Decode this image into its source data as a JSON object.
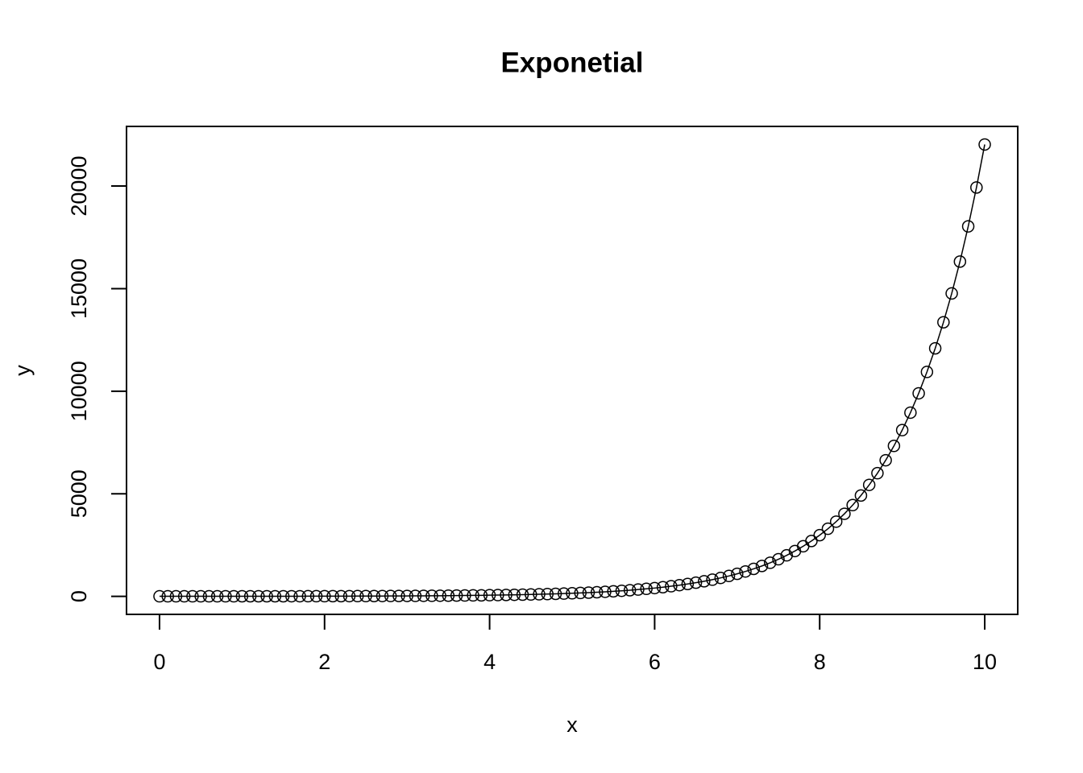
{
  "chart_data": {
    "type": "line",
    "title": "Exponetial",
    "x_label": "x",
    "y_label": "y",
    "x": [
      0,
      0.1,
      0.2,
      0.3,
      0.4,
      0.5,
      0.6,
      0.7,
      0.8,
      0.9,
      1,
      1.1,
      1.2,
      1.3,
      1.4,
      1.5,
      1.6,
      1.7,
      1.8,
      1.9,
      2,
      2.1,
      2.2,
      2.3,
      2.4,
      2.5,
      2.6,
      2.7,
      2.8,
      2.9,
      3,
      3.1,
      3.2,
      3.3,
      3.4,
      3.5,
      3.6,
      3.7,
      3.8,
      3.9,
      4,
      4.1,
      4.2,
      4.3,
      4.4,
      4.5,
      4.6,
      4.7,
      4.8,
      4.9,
      5,
      5.1,
      5.2,
      5.3,
      5.4,
      5.5,
      5.6,
      5.7,
      5.8,
      5.9,
      6,
      6.1,
      6.2,
      6.3,
      6.4,
      6.5,
      6.6,
      6.7,
      6.8,
      6.9,
      7,
      7.1,
      7.2,
      7.3,
      7.4,
      7.5,
      7.6,
      7.7,
      7.8,
      7.9,
      8,
      8.1,
      8.2,
      8.3,
      8.4,
      8.5,
      8.6,
      8.7,
      8.8,
      8.9,
      9,
      9.1,
      9.2,
      9.3,
      9.4,
      9.5,
      9.6,
      9.7,
      9.8,
      9.9,
      10
    ],
    "values": [
      1,
      1,
      1,
      1,
      1,
      2,
      2,
      2,
      2,
      2,
      3,
      3,
      3,
      4,
      4,
      4,
      5,
      5,
      6,
      7,
      7,
      8,
      9,
      10,
      11,
      12,
      13,
      15,
      16,
      18,
      20,
      22,
      25,
      27,
      30,
      33,
      37,
      40,
      45,
      49,
      55,
      60,
      67,
      74,
      81,
      90,
      99,
      110,
      122,
      134,
      148,
      164,
      181,
      200,
      221,
      245,
      270,
      299,
      330,
      365,
      403,
      446,
      493,
      545,
      602,
      665,
      735,
      812,
      898,
      992,
      1097,
      1212,
      1339,
      1480,
      1636,
      1808,
      1998,
      2208,
      2441,
      2697,
      2981,
      3294,
      3641,
      4024,
      4447,
      4915,
      5432,
      6003,
      6634,
      7332,
      8103,
      8955,
      9897,
      10938,
      12088,
      13360,
      14765,
      16318,
      18034,
      19930,
      22026
    ],
    "color": "#000000",
    "markers": true,
    "xlim": [
      -0.4,
      10.4
    ],
    "xticks": [
      0,
      2,
      4,
      6,
      8,
      10
    ],
    "ylim": [
      -880,
      22907
    ],
    "yticks": [
      0,
      5000,
      10000,
      15000,
      20000
    ],
    "grid": false
  }
}
